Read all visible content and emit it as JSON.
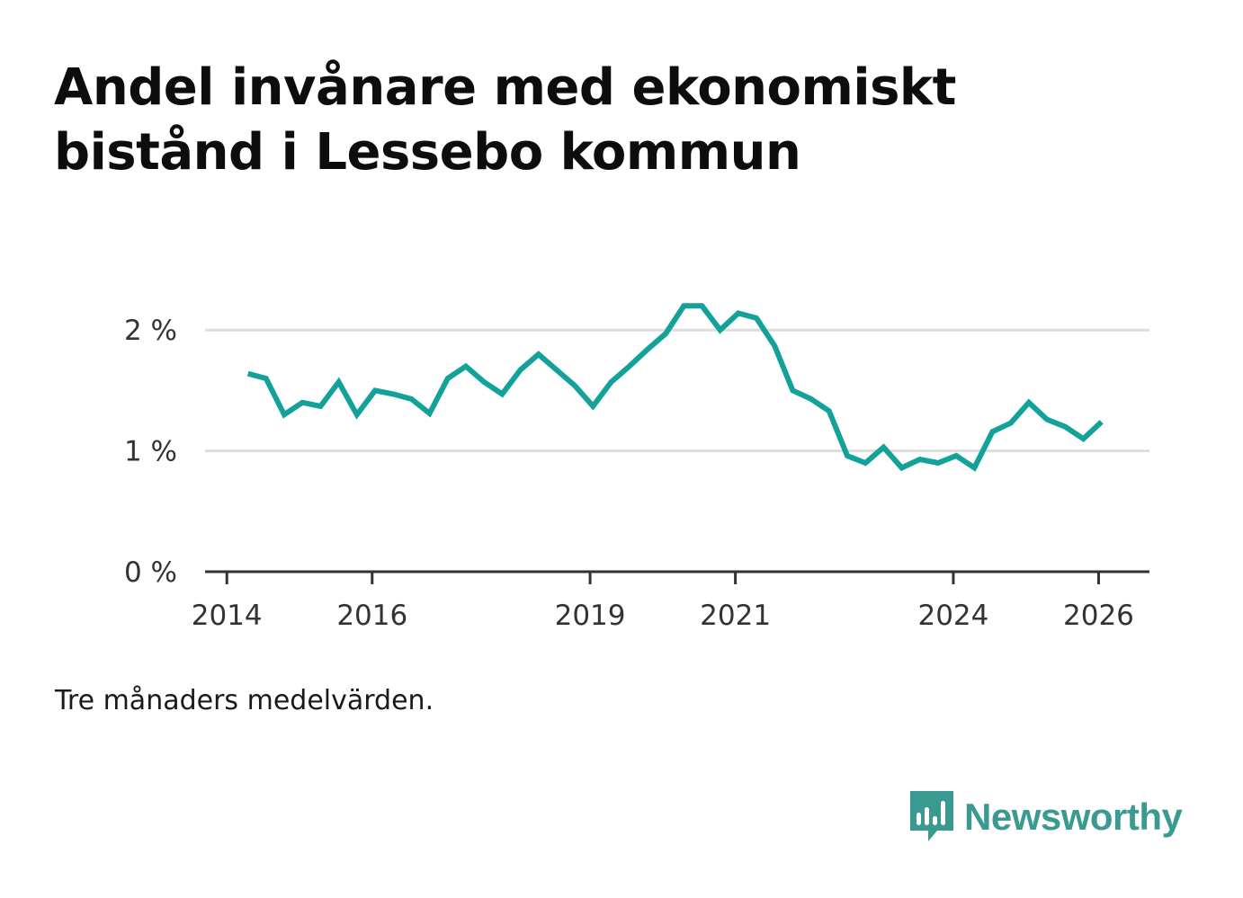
{
  "title": "Andel invånare med ekonomiskt bistånd i Lessebo kommun",
  "note": "Tre månaders medelvärden.",
  "brand": {
    "name": "Newsworthy",
    "color": "#3a9a92",
    "icon": "bar-chart-speech-bubble-icon"
  },
  "colors": {
    "line": "#13a299",
    "grid": "#dddddd",
    "axis": "#333333",
    "tick_text": "#333333"
  },
  "chart_data": {
    "type": "line",
    "title": "Andel invånare med ekonomiskt bistånd i Lessebo kommun",
    "xlabel": "",
    "ylabel": "",
    "xlim": [
      2013.7,
      2026.7
    ],
    "ylim": [
      0,
      2.5
    ],
    "grid": true,
    "x_ticks": [
      {
        "value": 2014,
        "label": "2014"
      },
      {
        "value": 2016,
        "label": "2016"
      },
      {
        "value": 2019,
        "label": "2019"
      },
      {
        "value": 2021,
        "label": "2021"
      },
      {
        "value": 2024,
        "label": "2024"
      },
      {
        "value": 2026,
        "label": "2026"
      }
    ],
    "y_ticks": [
      {
        "value": 0,
        "label": "0 %"
      },
      {
        "value": 1,
        "label": "1 %"
      },
      {
        "value": 2,
        "label": "2 %"
      }
    ],
    "series": [
      {
        "name": "Andel invånare med ekonomiskt bistånd",
        "x": [
          2014.29,
          2014.54,
          2014.79,
          2015.04,
          2015.29,
          2015.54,
          2015.79,
          2016.04,
          2016.29,
          2016.54,
          2016.79,
          2017.04,
          2017.29,
          2017.54,
          2017.79,
          2018.04,
          2018.29,
          2018.54,
          2018.79,
          2019.04,
          2019.29,
          2019.54,
          2019.79,
          2020.04,
          2020.29,
          2020.54,
          2020.79,
          2021.04,
          2021.29,
          2021.54,
          2021.79,
          2022.04,
          2022.29,
          2022.54,
          2022.79,
          2023.04,
          2023.29,
          2023.54,
          2023.79,
          2024.04,
          2024.29,
          2024.54,
          2024.79,
          2025.04,
          2025.29,
          2025.54,
          2025.79,
          2026.04
        ],
        "values": [
          1.64,
          1.6,
          1.3,
          1.4,
          1.37,
          1.57,
          1.3,
          1.5,
          1.47,
          1.43,
          1.31,
          1.6,
          1.7,
          1.57,
          1.47,
          1.67,
          1.8,
          1.67,
          1.54,
          1.37,
          1.57,
          1.7,
          1.84,
          1.97,
          2.2,
          2.2,
          2.0,
          2.14,
          2.1,
          1.87,
          1.5,
          1.43,
          1.33,
          0.96,
          0.9,
          1.03,
          0.86,
          0.93,
          0.9,
          0.96,
          0.86,
          1.16,
          1.23,
          1.4,
          1.26,
          1.2,
          1.1,
          1.24
        ]
      }
    ]
  }
}
